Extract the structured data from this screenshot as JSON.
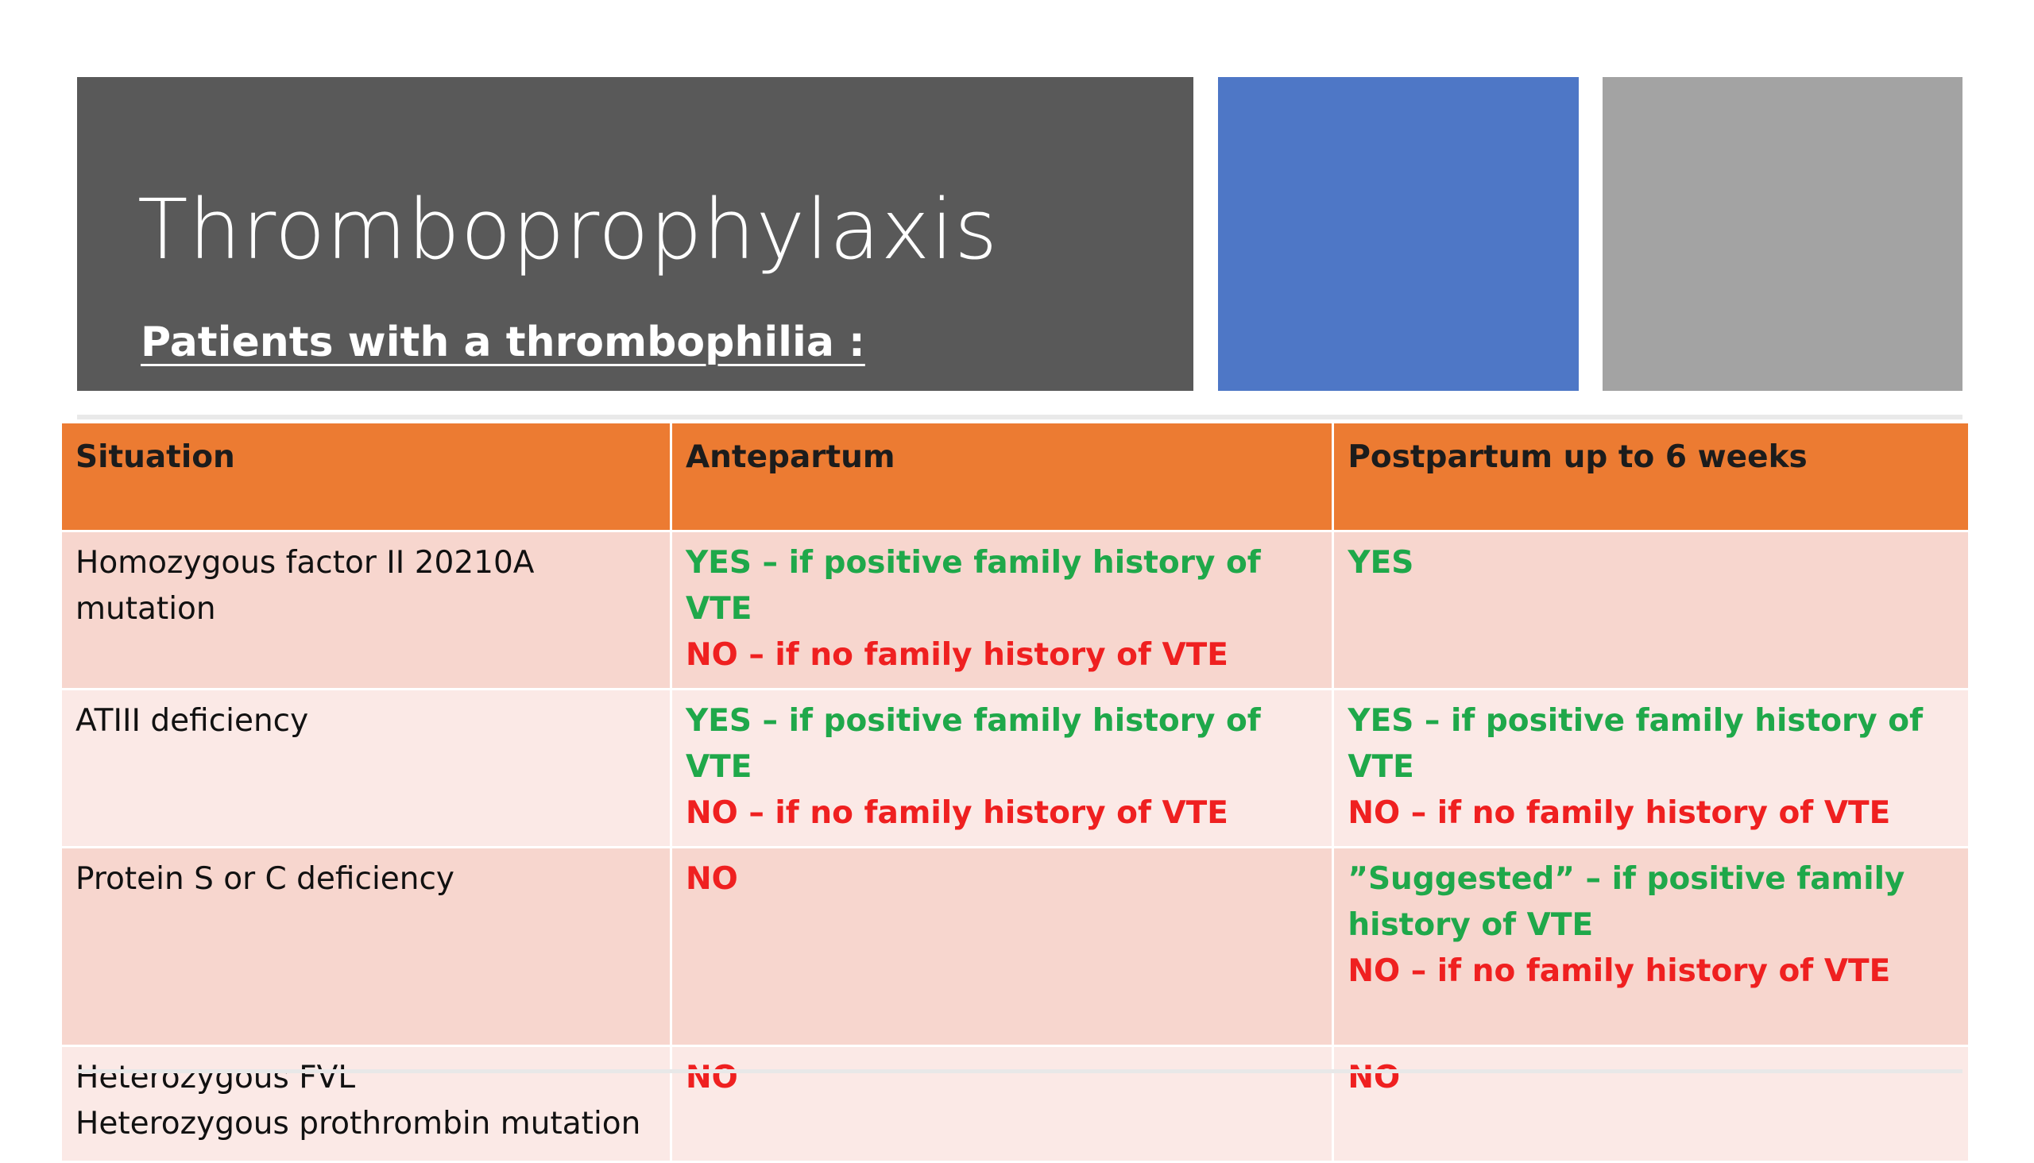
{
  "slide": {
    "title": "Thromboprophylaxis",
    "subtitle": "Patients with a thrombophilia :",
    "colors": {
      "title_bg": "#595959",
      "accent_blue": "#4e77c6",
      "accent_gray": "#a3a3a3",
      "header_bg": "#ec7b32",
      "row_dark": "#f7d6ce",
      "row_light": "#fbe9e6",
      "yes_text": "#1fa84a",
      "no_text": "#ef2020"
    }
  },
  "table": {
    "headers": [
      "Situation",
      "Antepartum",
      "Postpartum up to 6 weeks"
    ],
    "rows": [
      {
        "situation": [
          "Homozygous factor II 20210A",
          "mutation"
        ],
        "antepartum": [
          {
            "text": "YES – if positive family history of VTE",
            "kind": "yes"
          },
          {
            "text": "NO – if no family history of VTE",
            "kind": "no"
          }
        ],
        "postpartum": [
          {
            "text": "YES",
            "kind": "yes"
          }
        ]
      },
      {
        "situation": [
          "ATIII deficiency"
        ],
        "antepartum": [
          {
            "text": "YES – if positive family history of VTE",
            "kind": "yes"
          },
          {
            "text": "NO – if no family history of VTE",
            "kind": "no"
          }
        ],
        "postpartum": [
          {
            "text": "YES – if positive family history of VTE",
            "kind": "yes"
          },
          {
            "text": "NO – if no family history of VTE",
            "kind": "no"
          }
        ]
      },
      {
        "situation": [
          "Protein S or C deficiency"
        ],
        "antepartum": [
          {
            "text": "NO",
            "kind": "no"
          }
        ],
        "postpartum": [
          {
            "text": "”Suggested” – if positive family",
            "kind": "yes"
          },
          {
            "text": "history of VTE",
            "kind": "yes"
          },
          {
            "text": "NO – if no family history of VTE",
            "kind": "no"
          }
        ]
      },
      {
        "situation": [
          "Heterozygous FVL",
          "Heterozygous prothrombin mutation"
        ],
        "antepartum": [
          {
            "text": "NO",
            "kind": "no"
          }
        ],
        "postpartum": [
          {
            "text": "NO",
            "kind": "no"
          }
        ]
      }
    ]
  }
}
